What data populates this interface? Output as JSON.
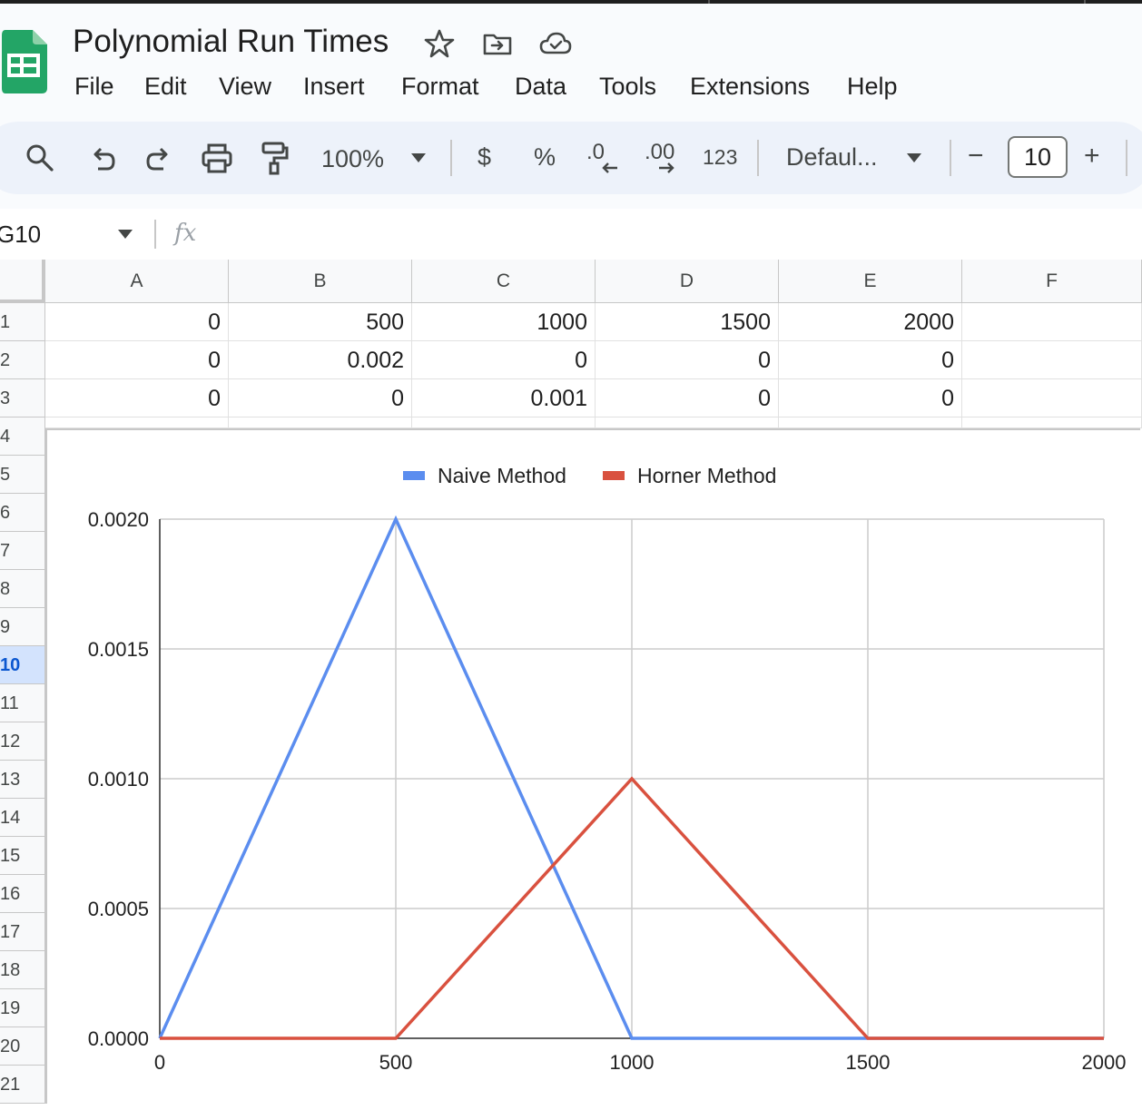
{
  "app": {
    "title": "Polynomial Run Times",
    "colors": {
      "sheets_green": "#23a566",
      "naive": "#5b8def",
      "horner": "#d9513f",
      "selected_row": "#d3e3fd"
    }
  },
  "menubar": {
    "items": [
      "File",
      "Edit",
      "View",
      "Insert",
      "Format",
      "Data",
      "Tools",
      "Extensions",
      "Help"
    ]
  },
  "toolbar": {
    "zoom": "100%",
    "currency": "$",
    "percent": "%",
    "decrease_decimal": ".0",
    "increase_decimal": ".00",
    "number_format": "123",
    "font": "Defaul...",
    "font_size": "10",
    "minus": "−",
    "plus": "+"
  },
  "formula_bar": {
    "name_box": "G10",
    "fx": "fx",
    "value": ""
  },
  "grid": {
    "columns": [
      "A",
      "B",
      "C",
      "D",
      "E",
      "F"
    ],
    "row_numbers": [
      "1",
      "2",
      "3",
      "4",
      "5",
      "6",
      "7",
      "8",
      "9",
      "10",
      "11",
      "12",
      "13",
      "14",
      "15",
      "16",
      "17",
      "18",
      "19",
      "20",
      "21"
    ],
    "selected_row": "10",
    "rows": [
      [
        "0",
        "500",
        "1000",
        "1500",
        "2000",
        ""
      ],
      [
        "0",
        "0.002",
        "0",
        "0",
        "0",
        ""
      ],
      [
        "0",
        "0",
        "0.001",
        "0",
        "0",
        ""
      ]
    ]
  },
  "chart_data": {
    "type": "line",
    "x": [
      0,
      500,
      1000,
      1500,
      2000
    ],
    "series": [
      {
        "name": "Naive Method",
        "values": [
          0,
          0.002,
          0,
          0,
          0
        ],
        "color": "#5b8def"
      },
      {
        "name": "Horner Method",
        "values": [
          0,
          0,
          0.001,
          0,
          0
        ],
        "color": "#d9513f"
      }
    ],
    "x_ticks": [
      "0",
      "500",
      "1000",
      "1500",
      "2000"
    ],
    "y_ticks": [
      "0.0000",
      "0.0005",
      "0.0010",
      "0.0015",
      "0.0020"
    ],
    "xlim": [
      0,
      2000
    ],
    "ylim": [
      0,
      0.002
    ],
    "grid": true,
    "legend": "top"
  }
}
